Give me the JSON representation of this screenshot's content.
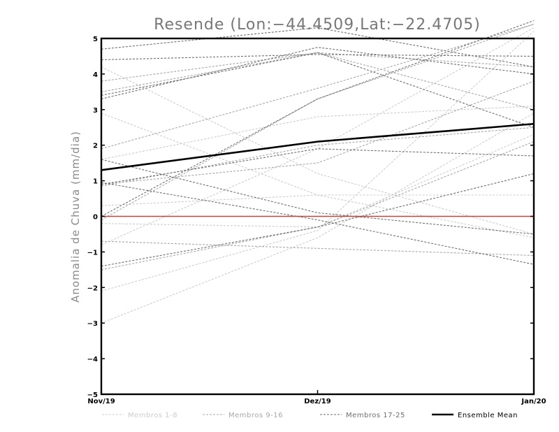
{
  "chart_data": {
    "type": "line",
    "title": "Resende (Lon:−44.4509,Lat:−22.4705)",
    "xlabel": "",
    "ylabel": "Anomalia de Chuva (mm/dia)",
    "categories": [
      "Nov/19",
      "Dez/19",
      "Jan/20"
    ],
    "ylim": [
      -5,
      5
    ],
    "yticks": [
      "5",
      "4",
      "3",
      "2",
      "1",
      "0",
      "−1",
      "−2",
      "−3",
      "−4",
      "−5"
    ],
    "ytick_values": [
      5,
      4,
      3,
      2,
      1,
      0,
      -1,
      -2,
      -3,
      -4,
      -5
    ],
    "zero_line": {
      "value": 0,
      "color": "#e8342e"
    },
    "groups": [
      {
        "name": "Membros 1-8",
        "color": "#cccccc",
        "label": "Membros 1-8"
      },
      {
        "name": "Membros 9-16",
        "color": "#a6a6a6",
        "label": "Membros 9-16"
      },
      {
        "name": "Membros 17-25",
        "color": "#6e6e6e",
        "label": "Membros 17-25"
      }
    ],
    "series": [
      {
        "name": "m1",
        "group": 0,
        "values": [
          4.2,
          1.2,
          -0.5
        ]
      },
      {
        "name": "m2",
        "group": 0,
        "values": [
          2.9,
          0.6,
          -0.6
        ]
      },
      {
        "name": "m3",
        "group": 0,
        "values": [
          0.3,
          0.6,
          0.6
        ]
      },
      {
        "name": "m4",
        "group": 0,
        "values": [
          -0.2,
          -0.3,
          2.3
        ]
      },
      {
        "name": "m5",
        "group": 0,
        "values": [
          -2.1,
          -0.4,
          5.2
        ]
      },
      {
        "name": "m6",
        "group": 0,
        "values": [
          -3.0,
          -0.6,
          2.9
        ]
      },
      {
        "name": "m7",
        "group": 0,
        "values": [
          1.6,
          2.8,
          3.1
        ]
      },
      {
        "name": "m8",
        "group": 0,
        "values": [
          -0.8,
          1.9,
          5.3
        ]
      },
      {
        "name": "m9",
        "group": 1,
        "values": [
          3.8,
          4.6,
          3.0
        ]
      },
      {
        "name": "m10",
        "group": 1,
        "values": [
          1.9,
          3.6,
          5.4
        ]
      },
      {
        "name": "m11",
        "group": 1,
        "values": [
          0.9,
          1.5,
          3.8
        ]
      },
      {
        "name": "m12",
        "group": 1,
        "values": [
          -0.7,
          -0.9,
          -1.1
        ]
      },
      {
        "name": "m13",
        "group": 1,
        "values": [
          -1.5,
          -0.3,
          2.1
        ]
      },
      {
        "name": "m14",
        "group": 1,
        "values": [
          0.85,
          2.0,
          2.5
        ]
      },
      {
        "name": "m15",
        "group": 1,
        "values": [
          3.5,
          4.6,
          4.2
        ]
      },
      {
        "name": "m16",
        "group": 1,
        "values": [
          -0.1,
          3.3,
          5.4
        ]
      },
      {
        "name": "m17",
        "group": 2,
        "values": [
          4.7,
          5.3,
          4.2
        ]
      },
      {
        "name": "m18",
        "group": 2,
        "values": [
          4.4,
          4.55,
          4.5
        ]
      },
      {
        "name": "m19",
        "group": 2,
        "values": [
          3.3,
          4.75,
          4.0
        ]
      },
      {
        "name": "m20",
        "group": 2,
        "values": [
          1.6,
          0.1,
          -0.5
        ]
      },
      {
        "name": "m21",
        "group": 2,
        "values": [
          0.9,
          1.9,
          1.7
        ]
      },
      {
        "name": "m22",
        "group": 2,
        "values": [
          -1.4,
          -0.3,
          1.2
        ]
      },
      {
        "name": "m23",
        "group": 2,
        "values": [
          0.95,
          -0.1,
          -1.35
        ]
      },
      {
        "name": "m24",
        "group": 2,
        "values": [
          0.0,
          3.3,
          5.5
        ]
      },
      {
        "name": "m25",
        "group": 2,
        "values": [
          3.4,
          4.6,
          2.5
        ]
      }
    ],
    "ensemble_mean": {
      "name": "Ensemble Mean",
      "color": "#000000",
      "values": [
        1.3,
        2.1,
        2.6
      ]
    },
    "legend": [
      {
        "label": "Membros 1-8",
        "color": "#cccccc",
        "style": "dashed"
      },
      {
        "label": "Membros 9-16",
        "color": "#a6a6a6",
        "style": "dashed"
      },
      {
        "label": "Membros 17-25",
        "color": "#6e6e6e",
        "style": "dashed"
      },
      {
        "label": "Ensemble Mean",
        "color": "#000000",
        "style": "solid"
      }
    ]
  }
}
